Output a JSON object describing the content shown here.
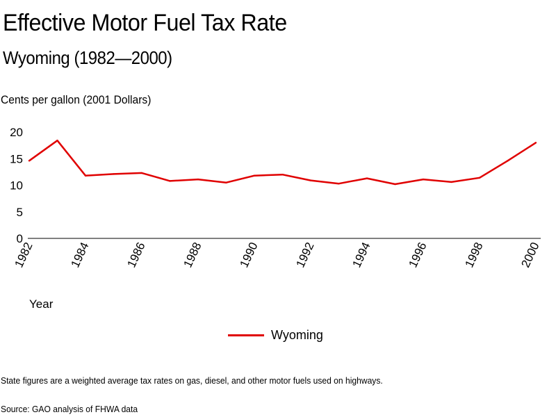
{
  "chart_data": {
    "type": "line",
    "title": "Effective Motor Fuel Tax Rate",
    "subtitle": "Wyoming (1982—2000)",
    "ylabel": "Cents per gallon (2001 Dollars)",
    "xlabel": "Year",
    "ylim": [
      0,
      20
    ],
    "yticks": [
      "0",
      "5",
      "10",
      "15",
      "20"
    ],
    "xticks": [
      "1982",
      "1984",
      "1986",
      "1988",
      "1990",
      "1992",
      "1994",
      "1996",
      "1998",
      "2000"
    ],
    "x": [
      1982,
      1983,
      1984,
      1985,
      1986,
      1987,
      1988,
      1989,
      1990,
      1991,
      1992,
      1993,
      1994,
      1995,
      1996,
      1997,
      1998,
      1999,
      2000
    ],
    "series": [
      {
        "name": "Wyoming",
        "color": "#e00000",
        "values": [
          14.6,
          18.4,
          11.8,
          12.1,
          12.3,
          10.8,
          11.1,
          10.5,
          11.8,
          12.0,
          10.9,
          10.3,
          11.3,
          10.2,
          11.1,
          10.6,
          11.4,
          14.6,
          18.0
        ]
      }
    ],
    "grid": false,
    "legend_position": "bottom"
  },
  "footnote": "State figures are a weighted average tax rates on gas, diesel, and other motor fuels used on highways.",
  "source": "Source: GAO analysis of FHWA data"
}
